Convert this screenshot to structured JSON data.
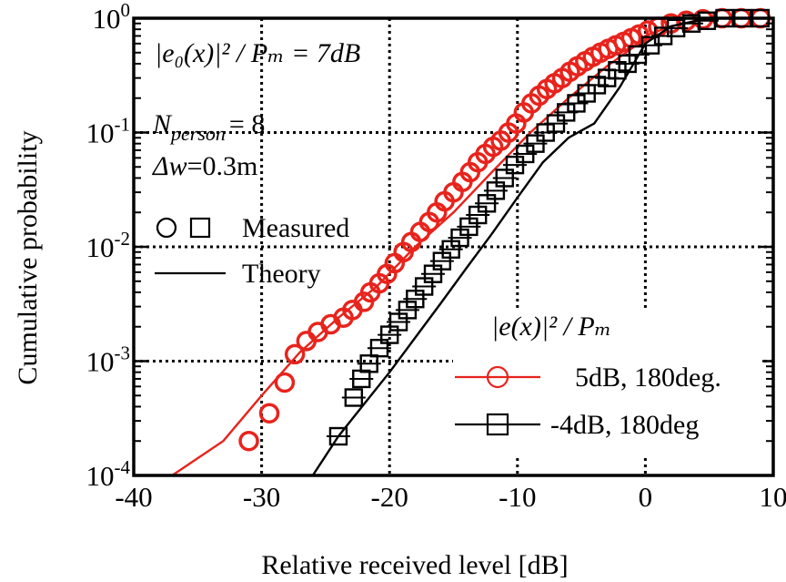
{
  "chart_data": {
    "type": "line",
    "xlabel": "Relative received level [dB]",
    "ylabel": "Cumulative probability",
    "xlim": [
      -40,
      10
    ],
    "ylim": [
      0.0001,
      1
    ],
    "yscale": "log",
    "grid": true,
    "xticks": [
      "-40",
      "-30",
      "-20",
      "-10",
      "0",
      "10"
    ],
    "yticks": [
      {
        "base": "10",
        "exp": "-4",
        "value": 0.0001
      },
      {
        "base": "10",
        "exp": "-3",
        "value": 0.001
      },
      {
        "base": "10",
        "exp": "-2",
        "value": 0.01
      },
      {
        "base": "10",
        "exp": "-1",
        "value": 0.1
      },
      {
        "base": "10",
        "exp": "0",
        "value": 1
      }
    ],
    "annotations": {
      "condition_expr": "|e₀(x)|² / Pₘ = 7dB",
      "n_person_symbol": "N",
      "n_person_sub": "person",
      "n_person_value": "= 8",
      "delta_w_symbol": "Δw",
      "delta_w_value": "=0.3m"
    },
    "legend_top": {
      "measured_label": "Measured",
      "theory_label": "Theory"
    },
    "legend_bottom": {
      "title": "|e(x)|² / Pₘ",
      "entries": [
        "5dB, 180deg.",
        "-4dB, 180deg"
      ]
    },
    "series": [
      {
        "name": "5dB, 180deg.",
        "color": "#e8231c",
        "measured": {
          "x": [
            -31,
            -29.4,
            -28.2,
            -27.4,
            -26.5,
            -25.6,
            -24.6,
            -23.6,
            -22.9,
            -22,
            -21.5,
            -20.8,
            -20.2,
            -19.6,
            -18.9,
            -18.3,
            -17.6,
            -16.9,
            -16.3,
            -15.7,
            -15,
            -14.3,
            -13.7,
            -13.1,
            -12.5,
            -11.9,
            -11.3,
            -10.7,
            -10.1,
            -9.5,
            -8.9,
            -8.3,
            -7.7,
            -7.1,
            -6.5,
            -5.9,
            -5.3,
            -4.7,
            -4.1,
            -3.5,
            -2.9,
            -2.3,
            -1.7,
            -1.1,
            -0.5,
            0.2,
            1,
            2,
            3.2,
            4.5,
            6,
            7.5,
            9
          ],
          "y": [
            0.0002,
            0.00035,
            0.00065,
            0.00115,
            0.0015,
            0.0018,
            0.0021,
            0.0024,
            0.0028,
            0.0033,
            0.004,
            0.0048,
            0.0058,
            0.0072,
            0.009,
            0.011,
            0.0135,
            0.0165,
            0.02,
            0.025,
            0.03,
            0.037,
            0.045,
            0.055,
            0.065,
            0.075,
            0.085,
            0.1,
            0.12,
            0.15,
            0.18,
            0.21,
            0.24,
            0.27,
            0.3,
            0.34,
            0.38,
            0.42,
            0.46,
            0.5,
            0.54,
            0.58,
            0.62,
            0.67,
            0.72,
            0.78,
            0.84,
            0.9,
            0.95,
            0.98,
            1,
            1,
            1
          ]
        },
        "theory": {
          "x": [
            -37,
            -33,
            -30,
            -27,
            -24,
            -21,
            -18,
            -15,
            -12,
            -9,
            -6,
            -3,
            -1,
            0,
            2,
            4,
            6,
            10
          ],
          "y": [
            0.0001,
            0.0002,
            0.0005,
            0.0012,
            0.0024,
            0.0045,
            0.01,
            0.02,
            0.045,
            0.1,
            0.2,
            0.38,
            0.55,
            0.7,
            0.85,
            0.95,
            1,
            1
          ]
        }
      },
      {
        "name": "-4dB, 180deg",
        "color": "#000000",
        "measured": {
          "x": [
            -24,
            -22.8,
            -22.2,
            -21.6,
            -20.8,
            -20,
            -19.3,
            -18.6,
            -18,
            -17.3,
            -16.6,
            -15.9,
            -15.2,
            -14.5,
            -13.8,
            -13.1,
            -12.4,
            -11.7,
            -11,
            -10.2,
            -9.4,
            -8.6,
            -7.8,
            -7,
            -6.2,
            -5.4,
            -4.6,
            -3.8,
            -3,
            -2.2,
            -1.4,
            -0.6,
            0.4,
            1.4,
            2.4,
            3.6,
            4.8,
            6.2,
            7.6,
            9
          ],
          "y": [
            0.00022,
            0.00048,
            0.0007,
            0.00095,
            0.0013,
            0.0017,
            0.0022,
            0.0028,
            0.0035,
            0.0045,
            0.0058,
            0.0075,
            0.0095,
            0.012,
            0.015,
            0.019,
            0.024,
            0.031,
            0.04,
            0.052,
            0.065,
            0.08,
            0.1,
            0.12,
            0.15,
            0.18,
            0.22,
            0.26,
            0.3,
            0.35,
            0.4,
            0.48,
            0.58,
            0.7,
            0.82,
            0.9,
            0.95,
            1,
            1,
            1
          ]
        },
        "theory": {
          "x": [
            -26,
            -24,
            -22,
            -20,
            -18,
            -16,
            -14,
            -12,
            -10,
            -8,
            -6,
            -4,
            -2,
            0,
            2,
            4,
            6,
            10
          ],
          "y": [
            0.0001,
            0.00022,
            0.00042,
            0.0008,
            0.0016,
            0.0032,
            0.0065,
            0.013,
            0.027,
            0.055,
            0.09,
            0.12,
            0.25,
            0.6,
            0.85,
            0.95,
            1,
            1
          ]
        }
      }
    ]
  }
}
